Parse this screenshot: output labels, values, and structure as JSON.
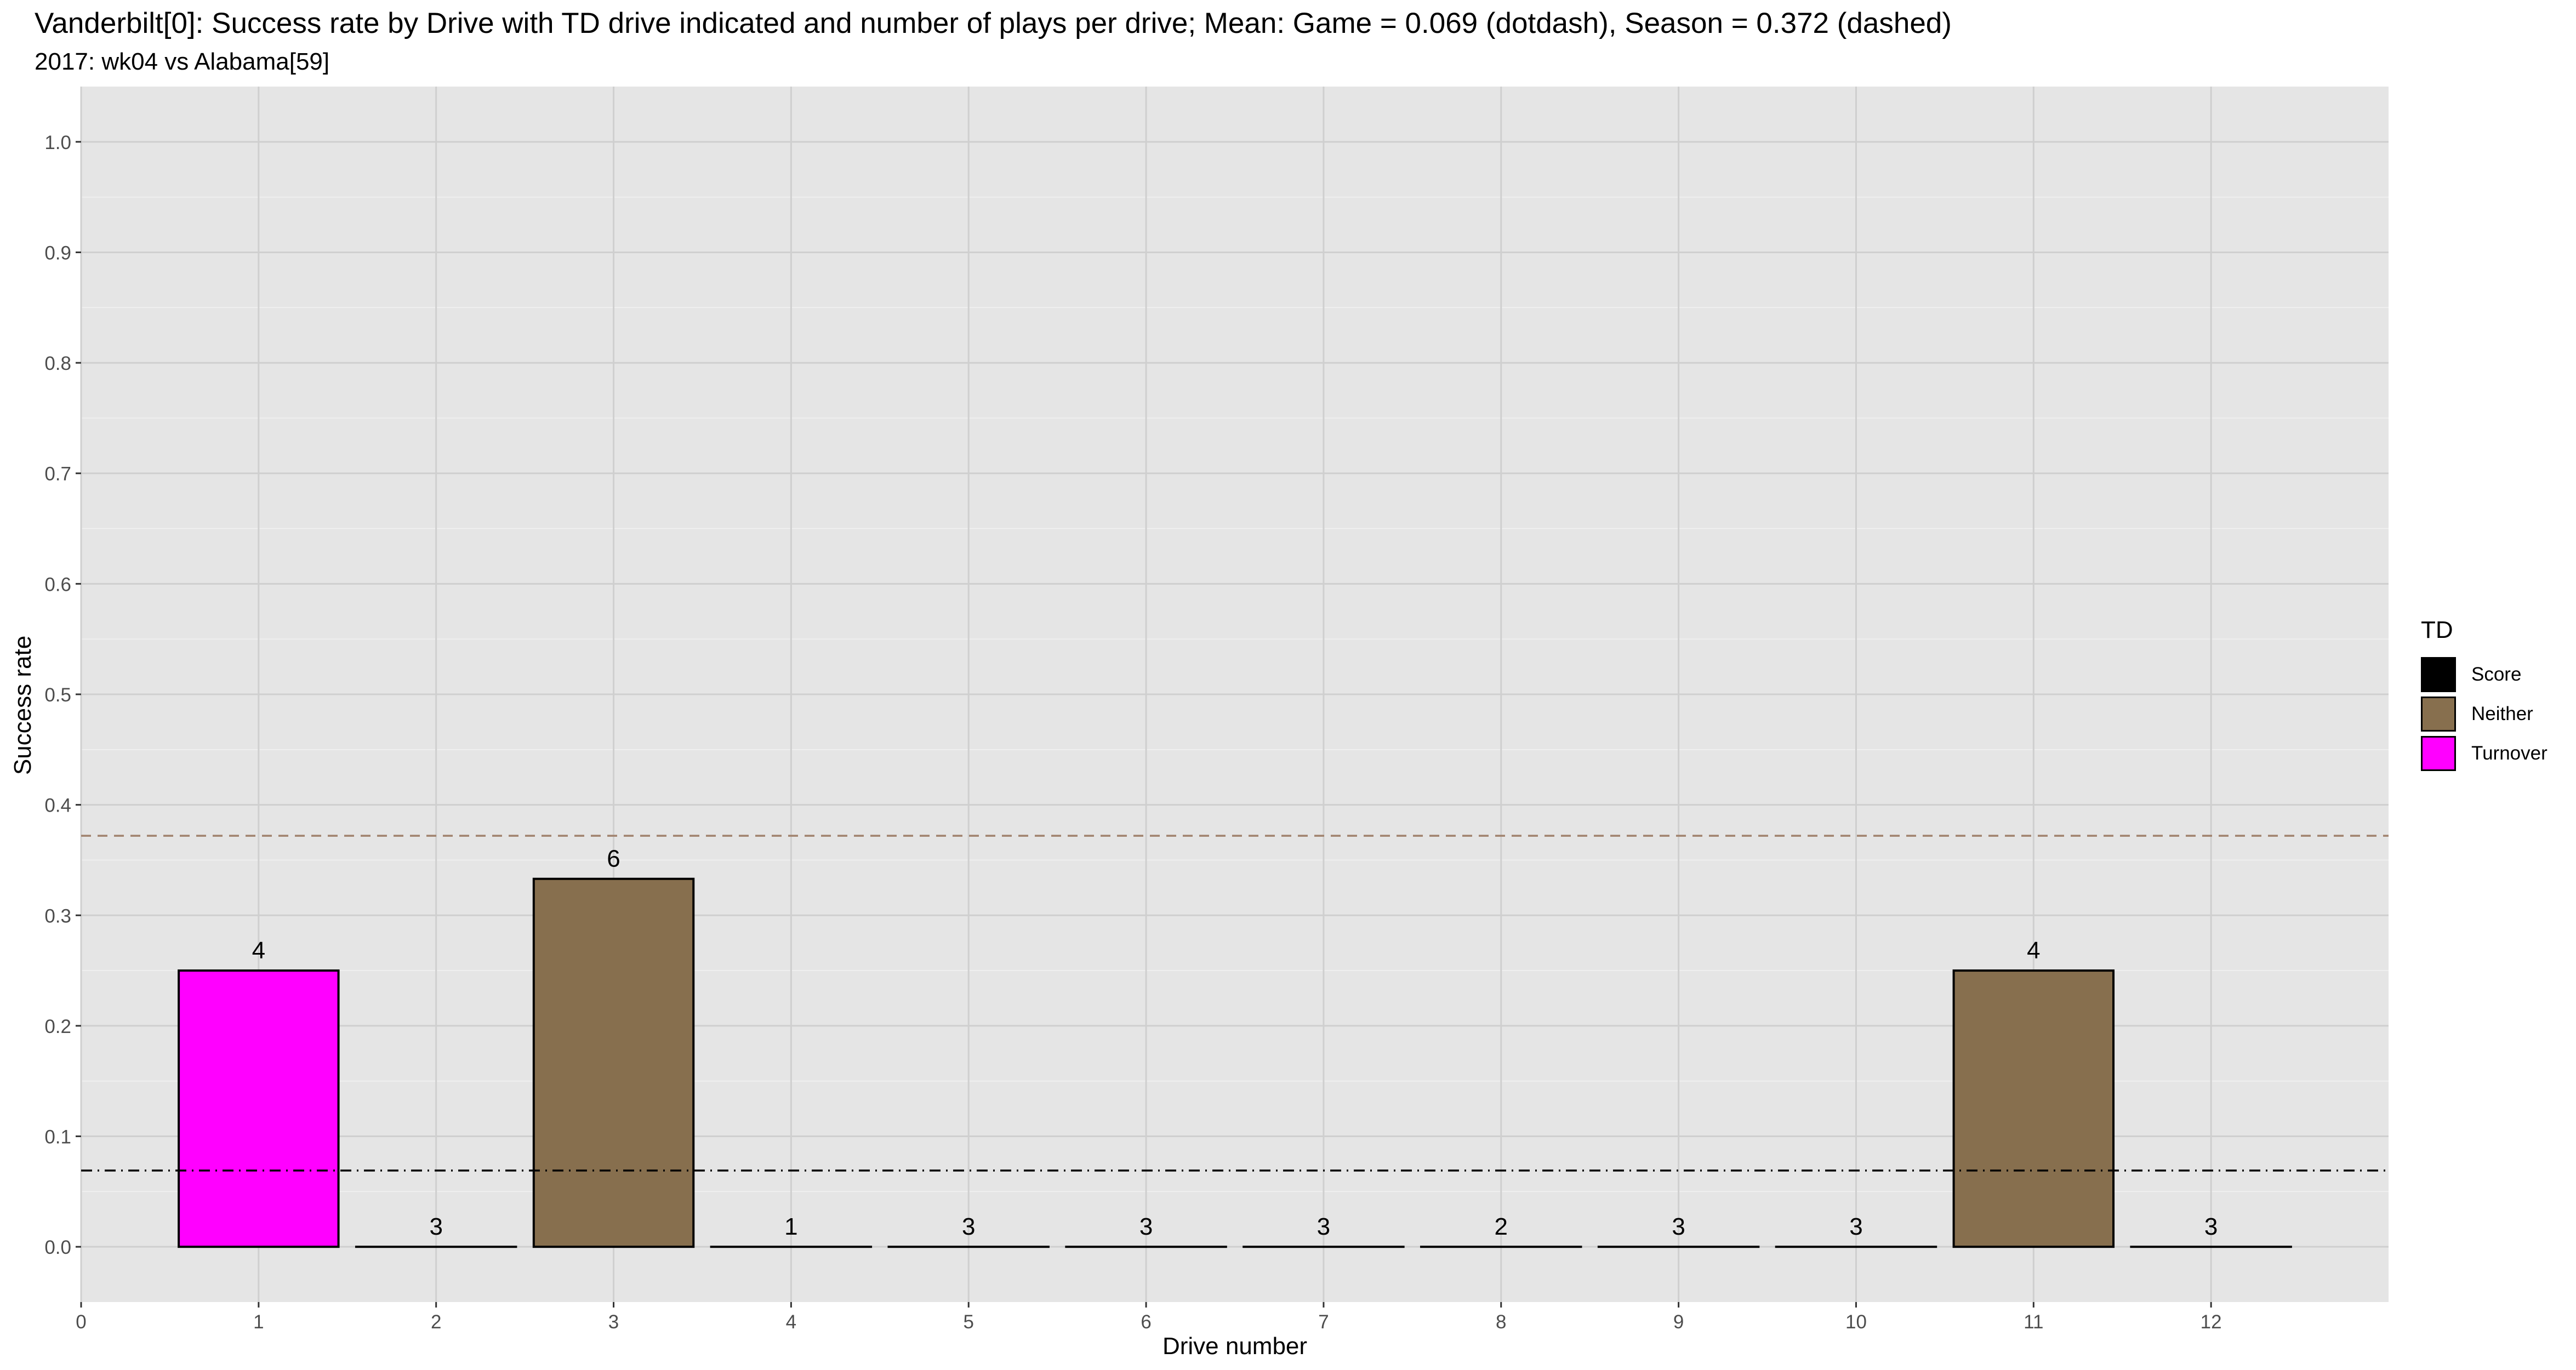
{
  "chart_data": {
    "type": "bar",
    "title": "Vanderbilt[0]: Success rate by Drive with TD drive indicated and number of plays per drive; Mean: Game = 0.069 (dotdash), Season = 0.372 (dashed)",
    "subtitle": "2017: wk04 vs Alabama[59]",
    "xlabel": "Drive number",
    "ylabel": "Success rate",
    "xlim": [
      0,
      13
    ],
    "ylim": [
      -0.05,
      1.05
    ],
    "x_ticks": [
      "0",
      "1",
      "2",
      "3",
      "4",
      "5",
      "6",
      "7",
      "8",
      "9",
      "10",
      "11",
      "12"
    ],
    "y_ticks": [
      "0.0",
      "0.1",
      "0.2",
      "0.3",
      "0.4",
      "0.5",
      "0.6",
      "0.7",
      "0.8",
      "0.9",
      "1.0"
    ],
    "categories": [
      1,
      2,
      3,
      4,
      5,
      6,
      7,
      8,
      9,
      10,
      11,
      12
    ],
    "values": [
      0.25,
      0,
      0.333,
      0,
      0,
      0,
      0,
      0,
      0,
      0,
      0.25,
      0
    ],
    "plays": [
      "4",
      "3",
      "6",
      "1",
      "3",
      "3",
      "3",
      "2",
      "3",
      "3",
      "4",
      "3"
    ],
    "td": [
      "Turnover",
      "Neither",
      "Neither",
      "Neither",
      "Neither",
      "Neither",
      "Neither",
      "Neither",
      "Neither",
      "Neither",
      "Neither",
      "Neither"
    ],
    "game_mean": 0.069,
    "season_mean": 0.372,
    "grid": true,
    "legend": {
      "title": "TD",
      "position": "right",
      "entries": [
        {
          "label": "Score",
          "color": "#000000"
        },
        {
          "label": "Neither",
          "color": "#876F4E"
        },
        {
          "label": "Turnover",
          "color": "#FF00FF"
        }
      ]
    }
  }
}
